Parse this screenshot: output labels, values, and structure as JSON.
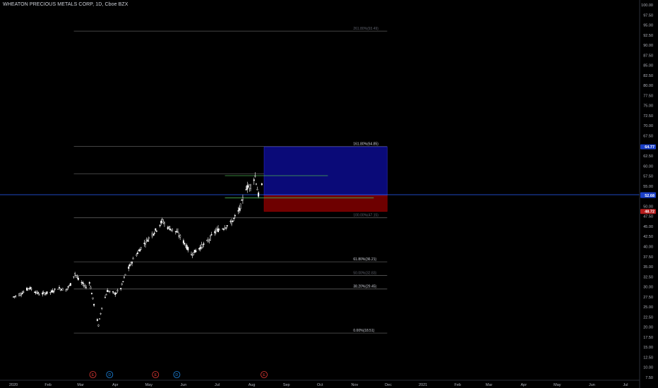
{
  "header": {
    "title": "WHEATON PRECIOUS METALS CORP, 1D, Cboe BZX"
  },
  "colors": {
    "background": "#000000",
    "candle": "#ffffff",
    "fib_line": "#5a5a5a",
    "target_zone": "#0a0a78",
    "stop_zone": "#6e0000",
    "current_price_line": "#2962ff",
    "blue_label": "#1a3fc8",
    "red_label": "#b71c1c",
    "green_line": "#4caf50",
    "event_red": "#e53935",
    "event_blue": "#1e88e5",
    "axis_text": "#b2b5be"
  },
  "chart_data": {
    "type": "candlestick",
    "title": "WHEATON PRECIOUS METALS CORP, 1D, Cboe BZX",
    "ylim": [
      7.5,
      101
    ],
    "y_ticks": [
      "100.00",
      "97.50",
      "95.00",
      "92.50",
      "90.00",
      "87.50",
      "85.00",
      "82.50",
      "80.00",
      "77.50",
      "75.00",
      "72.50",
      "70.00",
      "67.50",
      "65.00",
      "62.50",
      "60.00",
      "57.50",
      "55.00",
      "52.50",
      "50.00",
      "47.50",
      "45.00",
      "42.50",
      "40.00",
      "37.50",
      "35.00",
      "32.50",
      "30.00",
      "27.50",
      "25.00",
      "22.50",
      "20.00",
      "17.50",
      "15.00",
      "12.50",
      "10.00",
      "7.50"
    ],
    "x_ticks": [
      "2020",
      "Feb",
      "Mar",
      "Apr",
      "May",
      "Jun",
      "Jul",
      "Aug",
      "Sep",
      "Oct",
      "Nov",
      "Dec",
      "2021",
      "Feb",
      "Mar",
      "Apr",
      "May",
      "Jun",
      "Jul"
    ],
    "price_path": [
      [
        "2020-01-01",
        27.5
      ],
      [
        "2020-01-08",
        28.3
      ],
      [
        "2020-01-15",
        29.8
      ],
      [
        "2020-01-24",
        28.2
      ],
      [
        "2020-02-03",
        28.6
      ],
      [
        "2020-02-10",
        29.7
      ],
      [
        "2020-02-17",
        29.2
      ],
      [
        "2020-02-21",
        30.6
      ],
      [
        "2020-02-25",
        33.4
      ],
      [
        "2020-02-28",
        31.8
      ],
      [
        "2020-03-06",
        29.9
      ],
      [
        "2020-03-09",
        31.2
      ],
      [
        "2020-03-13",
        25.6
      ],
      [
        "2020-03-17",
        20.4
      ],
      [
        "2020-03-20",
        24.9
      ],
      [
        "2020-03-25",
        29.0
      ],
      [
        "2020-04-01",
        28.3
      ],
      [
        "2020-04-06",
        29.6
      ],
      [
        "2020-04-10",
        33.0
      ],
      [
        "2020-04-17",
        36.8
      ],
      [
        "2020-04-24",
        39.7
      ],
      [
        "2020-05-01",
        42.1
      ],
      [
        "2020-05-08",
        44.3
      ],
      [
        "2020-05-13",
        46.4
      ],
      [
        "2020-05-18",
        44.8
      ],
      [
        "2020-05-26",
        43.6
      ],
      [
        "2020-06-01",
        41.2
      ],
      [
        "2020-06-08",
        38.0
      ],
      [
        "2020-06-15",
        39.6
      ],
      [
        "2020-06-22",
        41.1
      ],
      [
        "2020-06-30",
        43.9
      ],
      [
        "2020-07-07",
        44.7
      ],
      [
        "2020-07-14",
        46.0
      ],
      [
        "2020-07-21",
        49.1
      ],
      [
        "2020-07-27",
        54.6
      ],
      [
        "2020-07-31",
        55.1
      ],
      [
        "2020-08-04",
        57.5
      ],
      [
        "2020-08-07",
        52.8
      ],
      [
        "2020-08-10",
        55.1
      ]
    ],
    "fib_levels": [
      {
        "label": "261.80%(93.49)",
        "value": 93.49,
        "faded": true
      },
      {
        "label": "161.80%(64.85)",
        "value": 64.85,
        "faded": false
      },
      {
        "label": "138.20%(58.09)",
        "value": 58.09,
        "faded": false
      },
      {
        "label": "100.00%(47.15)",
        "value": 47.15,
        "faded": true
      },
      {
        "label": "61.80%(36.21)",
        "value": 36.21,
        "faded": false
      },
      {
        "label": "50.00%(32.83)",
        "value": 32.83,
        "faded": true
      },
      {
        "label": "38.20%(29.45)",
        "value": 29.45,
        "faded": false
      },
      {
        "label": "0.00%(18.51)",
        "value": 18.51,
        "faded": false
      }
    ],
    "position_tool": {
      "target": 64.77,
      "entry": 52.68,
      "stop": 48.72,
      "start": "2020-08-12",
      "end": "2020-11-30"
    },
    "current_price": 52.88,
    "price_labels": [
      {
        "text": "64.77",
        "value": 64.77,
        "color": "blue"
      },
      {
        "text": "52.88",
        "value": 52.88,
        "color": "blue"
      },
      {
        "text": "52.68",
        "value": 52.68,
        "color": "blue"
      },
      {
        "text": "48.72",
        "value": 48.72,
        "color": "red"
      }
    ],
    "green_lines": [
      {
        "value": 57.6,
        "start": "2020-07-08",
        "end": "2020-10-08"
      },
      {
        "value": 52.1,
        "start": "2020-07-08",
        "end": "2020-11-18"
      }
    ],
    "events": [
      {
        "letter": "E",
        "date": "2020-03-12",
        "color": "red"
      },
      {
        "letter": "D",
        "date": "2020-03-27",
        "color": "blue"
      },
      {
        "letter": "E",
        "date": "2020-05-07",
        "color": "red"
      },
      {
        "letter": "D",
        "date": "2020-05-26",
        "color": "blue"
      },
      {
        "letter": "E",
        "date": "2020-08-12",
        "color": "red"
      }
    ]
  }
}
